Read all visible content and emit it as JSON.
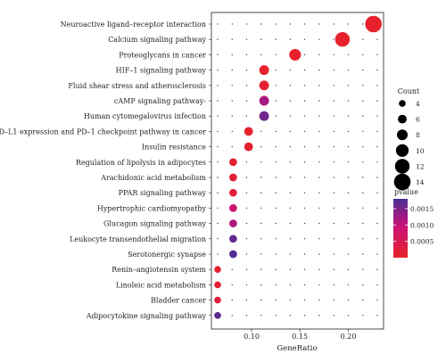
{
  "chart_data": {
    "type": "scatter",
    "subtype": "dot-plot",
    "title": "",
    "xlabel": "GeneRatio",
    "ylabel": "",
    "xlim": [
      0.065,
      0.23
    ],
    "xticks": [
      0.1,
      0.15,
      0.2
    ],
    "xtick_labels": [
      "0.10",
      "0.15",
      "0.20"
    ],
    "grid": true,
    "legend_placement": "right",
    "size_legend": {
      "title": "Count",
      "values": [
        4,
        6,
        8,
        10,
        12,
        14
      ],
      "labels": [
        "4",
        "6",
        "8",
        "10",
        "12",
        "14"
      ]
    },
    "color_legend": {
      "title": "pvalue",
      "ticks": [
        0.0005,
        0.001,
        0.0015
      ],
      "tick_labels": [
        "0.0005",
        "0.0010",
        "0.0015"
      ],
      "range": [
        0.0,
        0.0018
      ],
      "low_color": "#e8222a",
      "mid_color": "#c7127a",
      "high_color": "#4a2f93"
    },
    "categories": [
      "Neuroactive ligand–receptor interaction",
      "Calcium signaling pathway",
      "Proteoglycans in cancer",
      "HIF–1 signaling pathway",
      "Fluid shear stress and atherosclerosis",
      "cAMP signaling pathway-",
      "Human cytomegalovirus infection",
      "PD–L1 expression and PD–1 checkpoint pathway in cancer",
      "Insulin resistance",
      "Regulation of lipolysis in adipocytes",
      "Arachidonic acid metabolism",
      "PPAR signaling pathway",
      "Hypertrophic cardiomyopathy",
      "Glucagon signaling pathway",
      "Leukocyte transendothelial migration",
      "Serotonergic synapse",
      "Renin–angiotensin system",
      "Linoleic acid metabolism",
      "Bladder cancer",
      "Adipocytokine signaling pathway"
    ],
    "points": [
      {
        "term": "Neuroactive ligand–receptor interaction",
        "gene_ratio": 0.226,
        "count": 14,
        "pvalue": 2e-05
      },
      {
        "term": "Calcium signaling pathway",
        "gene_ratio": 0.194,
        "count": 12,
        "pvalue": 3e-05
      },
      {
        "term": "Proteoglycans in cancer",
        "gene_ratio": 0.145,
        "count": 9,
        "pvalue": 4e-05
      },
      {
        "term": "HIF–1 signaling pathway",
        "gene_ratio": 0.113,
        "count": 7,
        "pvalue": 5e-05
      },
      {
        "term": "Fluid shear stress and atherosclerosis",
        "gene_ratio": 0.113,
        "count": 7,
        "pvalue": 0.0001
      },
      {
        "term": "cAMP signaling pathway-",
        "gene_ratio": 0.113,
        "count": 7,
        "pvalue": 0.0012
      },
      {
        "term": "Human cytomegalovirus infection",
        "gene_ratio": 0.113,
        "count": 7,
        "pvalue": 0.00155
      },
      {
        "term": "PD–L1 expression and PD–1 checkpoint pathway in cancer",
        "gene_ratio": 0.097,
        "count": 6,
        "pvalue": 6e-05
      },
      {
        "term": "Insulin resistance",
        "gene_ratio": 0.097,
        "count": 6,
        "pvalue": 8e-05
      },
      {
        "term": "Regulation of lipolysis in adipocytes",
        "gene_ratio": 0.081,
        "count": 5,
        "pvalue": 0.0001
      },
      {
        "term": "Arachidonic acid metabolism",
        "gene_ratio": 0.081,
        "count": 5,
        "pvalue": 0.00015
      },
      {
        "term": "PPAR signaling pathway",
        "gene_ratio": 0.081,
        "count": 5,
        "pvalue": 0.0002
      },
      {
        "term": "Hypertrophic cardiomyopathy",
        "gene_ratio": 0.081,
        "count": 5,
        "pvalue": 0.00085
      },
      {
        "term": "Glucagon signaling pathway",
        "gene_ratio": 0.081,
        "count": 5,
        "pvalue": 0.00115
      },
      {
        "term": "Leukocyte transendothelial migration",
        "gene_ratio": 0.081,
        "count": 5,
        "pvalue": 0.00165
      },
      {
        "term": "Serotonergic synapse",
        "gene_ratio": 0.081,
        "count": 5,
        "pvalue": 0.00175
      },
      {
        "term": "Renin–angiotensin system",
        "gene_ratio": 0.065,
        "count": 4,
        "pvalue": 5e-05
      },
      {
        "term": "Linoleic acid metabolism",
        "gene_ratio": 0.065,
        "count": 4,
        "pvalue": 0.0001
      },
      {
        "term": "Bladder cancer",
        "gene_ratio": 0.065,
        "count": 4,
        "pvalue": 0.00025
      },
      {
        "term": "Adipocytokine signaling pathway",
        "gene_ratio": 0.065,
        "count": 4,
        "pvalue": 0.0017
      }
    ]
  }
}
